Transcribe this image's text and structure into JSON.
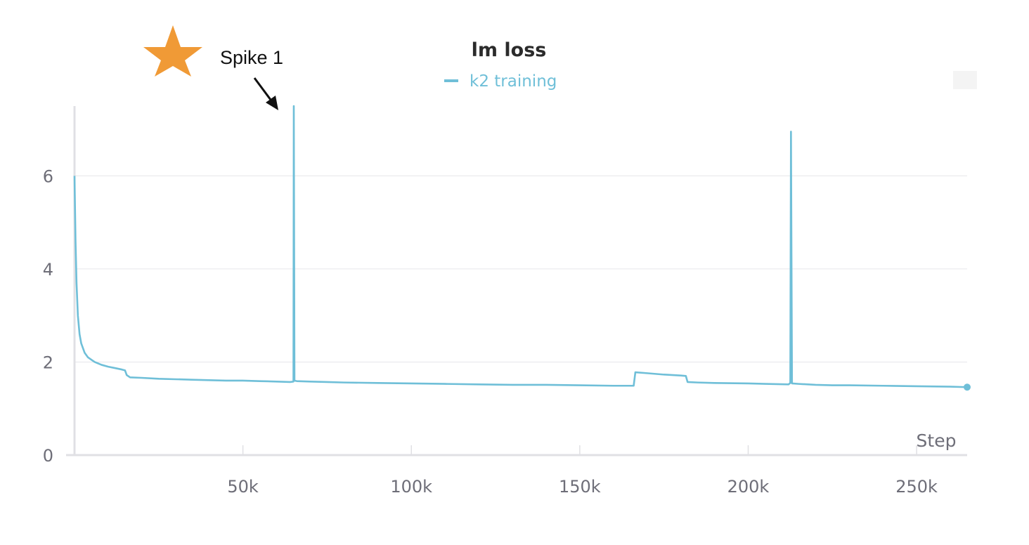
{
  "chart_data": {
    "type": "line",
    "title": "lm loss",
    "xlabel": "Step",
    "ylabel": "",
    "xlim": [
      0,
      265000
    ],
    "ylim": [
      0,
      7.5
    ],
    "xticks": [
      50000,
      100000,
      150000,
      200000,
      250000
    ],
    "xtick_labels": [
      "50k",
      "100k",
      "150k",
      "200k",
      "250k"
    ],
    "yticks": [
      0,
      2,
      4,
      6
    ],
    "ytick_labels": [
      "0",
      "2",
      "4",
      "6"
    ],
    "grid": true,
    "legend": "top-center",
    "series": [
      {
        "name": "k2 training",
        "color": "#6fbfd8",
        "points": [
          [
            0,
            6.0
          ],
          [
            300,
            4.6
          ],
          [
            600,
            3.7
          ],
          [
            1000,
            3.0
          ],
          [
            1500,
            2.6
          ],
          [
            2000,
            2.4
          ],
          [
            3000,
            2.2
          ],
          [
            4000,
            2.1
          ],
          [
            5000,
            2.05
          ],
          [
            6000,
            2.0
          ],
          [
            8000,
            1.94
          ],
          [
            10000,
            1.9
          ],
          [
            12000,
            1.87
          ],
          [
            14000,
            1.84
          ],
          [
            15000,
            1.82
          ],
          [
            15500,
            1.72
          ],
          [
            16500,
            1.67
          ],
          [
            20000,
            1.66
          ],
          [
            25000,
            1.64
          ],
          [
            30000,
            1.63
          ],
          [
            35000,
            1.62
          ],
          [
            40000,
            1.61
          ],
          [
            45000,
            1.6
          ],
          [
            50000,
            1.6
          ],
          [
            55000,
            1.59
          ],
          [
            60000,
            1.58
          ],
          [
            64000,
            1.57
          ],
          [
            65000,
            1.58
          ],
          [
            65100,
            7.5
          ],
          [
            65300,
            1.6
          ],
          [
            66000,
            1.59
          ],
          [
            70000,
            1.58
          ],
          [
            75000,
            1.57
          ],
          [
            80000,
            1.56
          ],
          [
            90000,
            1.55
          ],
          [
            100000,
            1.54
          ],
          [
            110000,
            1.53
          ],
          [
            120000,
            1.52
          ],
          [
            130000,
            1.51
          ],
          [
            140000,
            1.51
          ],
          [
            150000,
            1.5
          ],
          [
            160000,
            1.49
          ],
          [
            166000,
            1.49
          ],
          [
            166500,
            1.78
          ],
          [
            170000,
            1.76
          ],
          [
            175000,
            1.73
          ],
          [
            180000,
            1.71
          ],
          [
            181500,
            1.7
          ],
          [
            182000,
            1.57
          ],
          [
            185000,
            1.56
          ],
          [
            190000,
            1.55
          ],
          [
            200000,
            1.54
          ],
          [
            205000,
            1.53
          ],
          [
            212000,
            1.52
          ],
          [
            212500,
            1.55
          ],
          [
            212700,
            6.95
          ],
          [
            213000,
            1.54
          ],
          [
            215000,
            1.53
          ],
          [
            220000,
            1.51
          ],
          [
            225000,
            1.5
          ],
          [
            230000,
            1.5
          ],
          [
            240000,
            1.49
          ],
          [
            250000,
            1.48
          ],
          [
            260000,
            1.47
          ],
          [
            265000,
            1.46
          ]
        ]
      }
    ],
    "annotations": [
      {
        "text": "Spike 1",
        "x": 65000,
        "y": 7.5,
        "arrow": true,
        "marker": "star",
        "marker_color": "#f09a36"
      }
    ]
  }
}
